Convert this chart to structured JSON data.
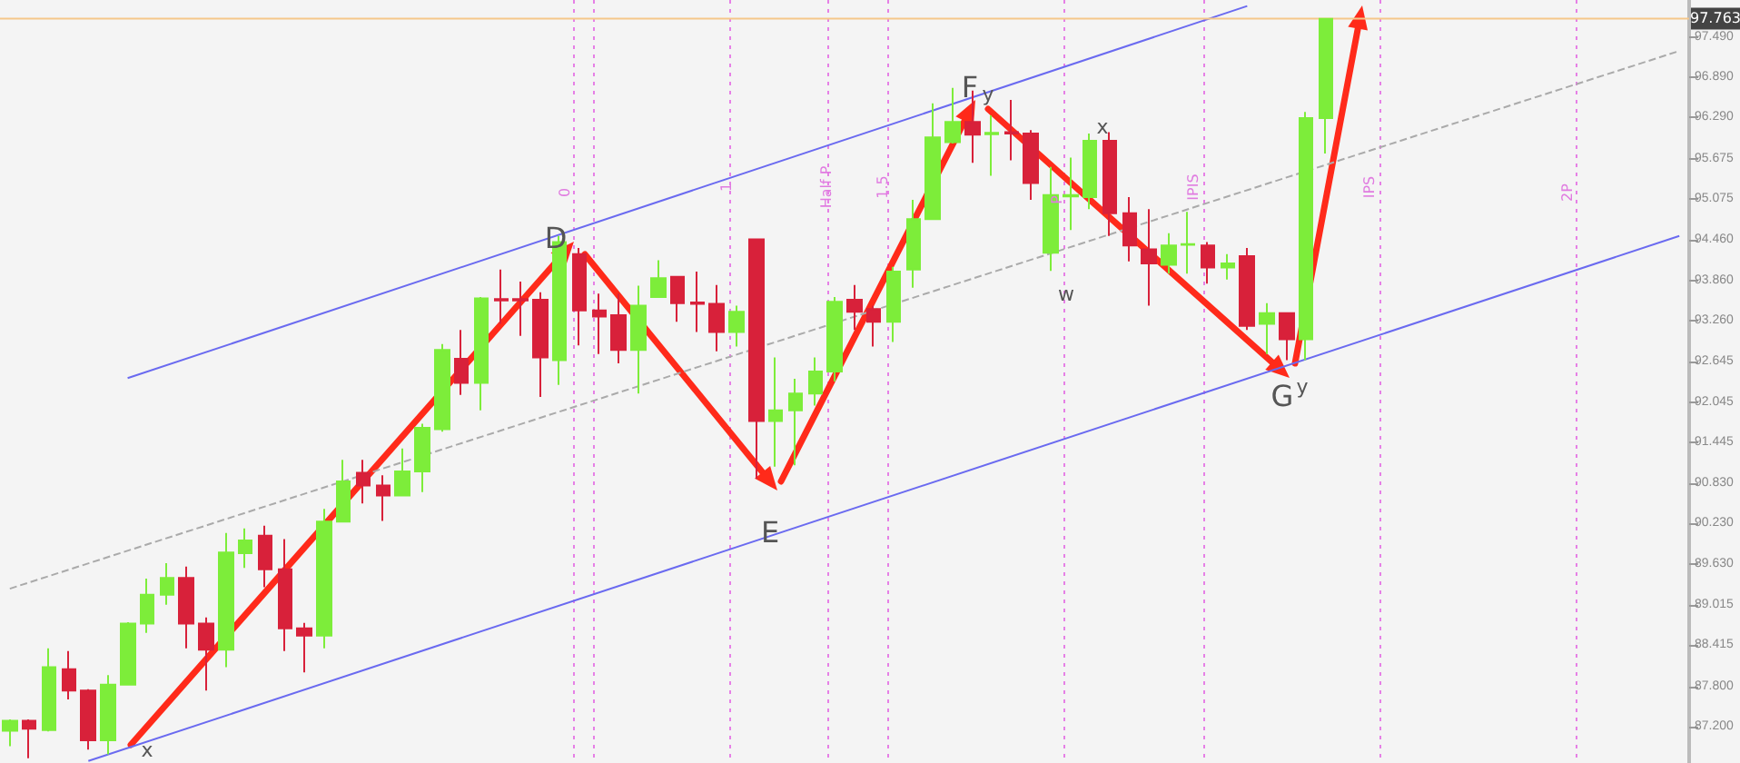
{
  "chart_data": {
    "type": "candlestick",
    "categories": [
      null,
      null,
      null,
      null,
      null,
      null,
      null,
      null,
      null,
      null,
      null,
      null,
      null,
      null,
      null,
      null,
      null,
      null,
      null,
      null,
      null,
      null,
      null,
      null,
      null,
      null,
      null,
      null,
      null,
      null,
      null,
      null,
      null,
      null,
      null,
      null,
      null,
      null,
      null,
      null,
      null,
      null,
      null,
      null,
      null,
      null,
      null,
      null,
      null,
      null,
      null,
      null,
      null,
      null,
      null,
      null,
      null,
      null,
      null,
      null,
      null,
      null,
      null,
      null,
      null,
      null,
      null,
      null,
      null,
      null,
      null,
      null,
      null,
      null,
      null,
      null,
      null,
      null,
      null,
      null,
      null,
      null,
      null,
      null,
      null,
      null
    ],
    "ohlc": [
      [
        87.14,
        87.31,
        86.91,
        87.29
      ],
      [
        87.29,
        87.31,
        86.73,
        87.17
      ],
      [
        87.15,
        88.37,
        87.13,
        88.09
      ],
      [
        88.06,
        88.33,
        87.61,
        87.74
      ],
      [
        87.74,
        87.76,
        86.86,
        87.0
      ],
      [
        87.0,
        87.97,
        86.79,
        87.83
      ],
      [
        87.83,
        88.76,
        87.82,
        88.74
      ],
      [
        88.74,
        89.41,
        88.6,
        89.17
      ],
      [
        89.17,
        89.64,
        89.02,
        89.42
      ],
      [
        89.42,
        89.59,
        88.37,
        88.74
      ],
      [
        88.74,
        88.83,
        87.74,
        88.35
      ],
      [
        88.35,
        90.09,
        88.09,
        89.8
      ],
      [
        89.79,
        90.16,
        89.57,
        89.98
      ],
      [
        90.05,
        90.2,
        89.28,
        89.55
      ],
      [
        89.55,
        90.0,
        88.33,
        88.67
      ],
      [
        88.67,
        88.75,
        88.01,
        88.56
      ],
      [
        88.56,
        90.45,
        88.37,
        90.26
      ],
      [
        90.26,
        91.18,
        90.25,
        90.86
      ],
      [
        90.99,
        91.18,
        90.53,
        90.8
      ],
      [
        90.8,
        90.95,
        90.27,
        90.65
      ],
      [
        90.65,
        91.35,
        90.64,
        91.01
      ],
      [
        91.01,
        91.72,
        90.7,
        91.66
      ],
      [
        91.64,
        92.91,
        91.6,
        92.82
      ],
      [
        92.69,
        93.12,
        92.15,
        92.33
      ],
      [
        92.33,
        93.61,
        91.92,
        93.59
      ],
      [
        93.58,
        94.02,
        93.21,
        93.56
      ],
      [
        93.58,
        93.84,
        93.03,
        93.56
      ],
      [
        93.57,
        93.68,
        92.12,
        92.71
      ],
      [
        92.67,
        94.52,
        92.3,
        94.43
      ],
      [
        94.25,
        94.34,
        92.89,
        93.41
      ],
      [
        93.41,
        93.66,
        92.76,
        93.32
      ],
      [
        93.34,
        93.66,
        92.62,
        92.82
      ],
      [
        92.82,
        93.78,
        92.17,
        93.48
      ],
      [
        93.61,
        94.16,
        93.6,
        93.89
      ],
      [
        93.91,
        93.92,
        93.24,
        93.52
      ],
      [
        93.53,
        93.99,
        93.09,
        93.51
      ],
      [
        93.51,
        93.79,
        92.8,
        93.09
      ],
      [
        93.09,
        93.48,
        92.87,
        93.39
      ],
      [
        94.47,
        94.48,
        90.9,
        91.76
      ],
      [
        91.76,
        92.71,
        91.08,
        91.92
      ],
      [
        91.92,
        92.39,
        91.1,
        92.17
      ],
      [
        92.17,
        92.71,
        91.99,
        92.5
      ],
      [
        92.5,
        93.61,
        92.35,
        93.54
      ],
      [
        93.57,
        93.79,
        93.12,
        93.39
      ],
      [
        93.43,
        93.48,
        92.87,
        93.24
      ],
      [
        93.24,
        94.06,
        92.94,
        93.99
      ],
      [
        94.02,
        95.06,
        93.75,
        94.77
      ],
      [
        94.77,
        96.5,
        94.76,
        95.99
      ],
      [
        95.92,
        96.73,
        95.9,
        96.22
      ],
      [
        96.22,
        96.69,
        95.61,
        96.03
      ],
      [
        96.04,
        96.32,
        95.42,
        96.06
      ],
      [
        96.07,
        96.55,
        95.65,
        96.05
      ],
      [
        96.05,
        96.1,
        95.06,
        95.31
      ],
      [
        94.27,
        95.55,
        94.0,
        95.13
      ],
      [
        95.11,
        95.69,
        94.61,
        95.13
      ],
      [
        95.1,
        96.05,
        94.92,
        95.94
      ],
      [
        95.94,
        96.07,
        94.52,
        94.86
      ],
      [
        94.86,
        95.1,
        94.14,
        94.38
      ],
      [
        94.32,
        94.92,
        93.48,
        94.11
      ],
      [
        94.09,
        94.56,
        93.96,
        94.38
      ],
      [
        94.39,
        94.88,
        93.96,
        94.4
      ],
      [
        94.38,
        94.43,
        93.81,
        94.05
      ],
      [
        94.05,
        94.25,
        93.87,
        94.11
      ],
      [
        94.22,
        94.34,
        93.12,
        93.18
      ],
      [
        93.21,
        93.52,
        92.76,
        93.37
      ],
      [
        93.37,
        93.38,
        92.67,
        92.98
      ],
      [
        92.98,
        96.37,
        92.67,
        96.28
      ],
      [
        96.28,
        97.77,
        95.75,
        97.76
      ],
      null,
      null,
      null,
      null,
      null,
      null,
      null,
      null,
      null,
      null,
      null,
      null,
      null,
      null,
      null,
      null,
      null,
      null
    ],
    "colors": [
      "#7ded3a",
      "#d8213a",
      "#7ded3a",
      "#d8213a",
      "#d8213a",
      "#7ded3a",
      "#7ded3a",
      "#7ded3a",
      "#7ded3a",
      "#d8213a",
      "#d8213a",
      "#7ded3a",
      "#7ded3a",
      "#d8213a",
      "#d8213a",
      "#d8213a",
      "#7ded3a",
      "#7ded3a",
      "#d8213a",
      "#d8213a",
      "#7ded3a",
      "#7ded3a",
      "#7ded3a",
      "#d8213a",
      "#7ded3a",
      "#d8213a",
      "#d8213a",
      "#d8213a",
      "#7ded3a",
      "#d8213a",
      "#d8213a",
      "#d8213a",
      "#7ded3a",
      "#7ded3a",
      "#d8213a",
      "#d8213a",
      "#d8213a",
      "#7ded3a",
      "#d8213a",
      "#7ded3a",
      "#7ded3a",
      "#7ded3a",
      "#7ded3a",
      "#d8213a",
      "#d8213a",
      "#7ded3a",
      "#7ded3a",
      "#7ded3a",
      "#7ded3a",
      "#d8213a",
      "#7ded3a",
      "#d8213a",
      "#d8213a",
      "#7ded3a",
      "#7ded3a",
      "#7ded3a",
      "#d8213a",
      "#d8213a",
      "#d8213a",
      "#7ded3a",
      "#7ded3a",
      "#d8213a",
      "#7ded3a",
      "#d8213a",
      "#7ded3a",
      "#d8213a",
      "#7ded3a",
      "#7ded3a",
      null,
      null,
      null,
      null,
      null,
      null,
      null,
      null,
      null,
      null,
      null,
      null,
      null,
      null,
      null,
      null,
      null,
      null
    ],
    "ylim": [
      86.66,
      98.04
    ],
    "yticks": [
      {
        "value": 87.2,
        "label": "87.200"
      },
      {
        "value": 87.8,
        "label": "87.800"
      },
      {
        "value": 88.415,
        "label": "88.415"
      },
      {
        "value": 89.015,
        "label": "89.015"
      },
      {
        "value": 89.63,
        "label": "89.630"
      },
      {
        "value": 90.23,
        "label": "90.230"
      },
      {
        "value": 90.83,
        "label": "90.830"
      },
      {
        "value": 91.445,
        "label": "91.445"
      },
      {
        "value": 92.045,
        "label": "92.045"
      },
      {
        "value": 92.645,
        "label": "92.645"
      },
      {
        "value": 93.26,
        "label": "93.260"
      },
      {
        "value": 93.86,
        "label": "93.860"
      },
      {
        "value": 94.46,
        "label": "94.460"
      },
      {
        "value": 95.075,
        "label": "95.075"
      },
      {
        "value": 95.675,
        "label": "95.675"
      },
      {
        "value": 96.29,
        "label": "96.290"
      },
      {
        "value": 96.89,
        "label": "96.890"
      },
      {
        "value": 97.49,
        "label": "97.490"
      }
    ],
    "tick_labels": "y",
    "series": [
      {
        "type": "line",
        "color": "#6a6af0",
        "values": [
          null,
          null,
          null,
          null,
          null,
          null,
          92.4,
          null,
          null,
          null,
          null,
          null,
          null,
          null,
          null,
          null,
          null,
          null,
          null,
          null,
          null,
          null,
          null,
          null,
          null,
          null,
          null,
          null,
          null,
          null,
          null,
          null,
          null,
          null,
          null,
          null,
          null,
          null,
          null,
          null,
          null,
          null,
          null,
          null,
          null,
          null,
          null,
          null,
          null,
          null,
          null,
          null,
          null,
          null,
          null,
          null,
          null,
          null,
          null,
          null,
          null,
          null,
          null,
          97.95,
          null,
          null,
          null,
          null,
          null,
          null,
          null,
          null,
          null,
          null,
          null,
          null,
          null,
          null,
          null,
          null,
          null,
          null,
          null,
          null,
          null,
          null
        ]
      },
      {
        "type": "line",
        "color": "#6a6af0",
        "values": [
          null,
          null,
          null,
          null,
          86.69,
          null,
          null,
          null,
          null,
          null,
          null,
          null,
          null,
          null,
          null,
          null,
          null,
          null,
          null,
          null,
          null,
          null,
          null,
          null,
          null,
          null,
          null,
          null,
          null,
          null,
          null,
          null,
          null,
          null,
          null,
          null,
          null,
          null,
          null,
          null,
          null,
          null,
          null,
          null,
          null,
          null,
          null,
          null,
          null,
          null,
          null,
          null,
          null,
          null,
          null,
          null,
          null,
          null,
          null,
          null,
          null,
          null,
          null,
          null,
          null,
          null,
          null,
          null,
          null,
          null,
          null,
          null,
          null,
          null,
          null,
          null,
          null,
          null,
          null,
          null,
          null,
          null,
          null,
          null,
          null,
          94.52
        ]
      },
      {
        "type": "line",
        "color": "#aaaaaa",
        "line_style": "dashed",
        "values": [
          89.26,
          null,
          null,
          null,
          null,
          null,
          null,
          null,
          null,
          null,
          null,
          null,
          null,
          null,
          null,
          null,
          null,
          null,
          null,
          null,
          null,
          null,
          null,
          null,
          null,
          null,
          null,
          null,
          null,
          null,
          null,
          null,
          null,
          null,
          null,
          null,
          null,
          null,
          null,
          null,
          null,
          null,
          null,
          null,
          null,
          null,
          null,
          null,
          null,
          null,
          null,
          null,
          null,
          null,
          null,
          null,
          null,
          null,
          null,
          null,
          null,
          null,
          null,
          null,
          null,
          null,
          null,
          null,
          null,
          null,
          null,
          null,
          null,
          null,
          null,
          null,
          null,
          null,
          null,
          null,
          null,
          null,
          null,
          null,
          null,
          97.28
        ]
      }
    ],
    "ref_lines": [
      {
        "axis": "y",
        "value": 97.763,
        "label": "97.763",
        "color": "#f5c78a"
      }
    ],
    "annotations": [
      "x",
      "D",
      "E",
      "F",
      "y",
      "w",
      "x",
      "G",
      "y",
      "0",
      "1",
      "Half P",
      "1.5",
      "P",
      "IPIS",
      "IPS",
      "2P"
    ]
  }
}
